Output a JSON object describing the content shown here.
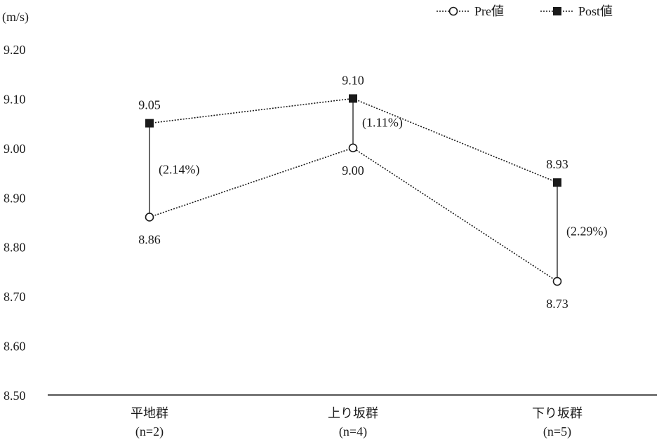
{
  "chart_data": {
    "type": "line",
    "unit_label": "(m/s)",
    "ylim": [
      8.5,
      9.2
    ],
    "y_ticks": [
      "9.20",
      "9.10",
      "9.00",
      "8.90",
      "8.80",
      "8.70",
      "8.60",
      "8.50"
    ],
    "grid": false,
    "legend_position": "top-right",
    "categories": [
      {
        "name": "平地群",
        "n": "(n=2)"
      },
      {
        "name": "上り坂群",
        "n": "(n=4)"
      },
      {
        "name": "下り坂群",
        "n": "(n=5)"
      }
    ],
    "series": [
      {
        "name": "Pre値",
        "marker": "open-circle",
        "values": [
          8.86,
          9.0,
          8.73
        ],
        "labels": [
          "8.86",
          "9.00",
          "8.73"
        ]
      },
      {
        "name": "Post値",
        "marker": "filled-square",
        "values": [
          9.05,
          9.1,
          8.93
        ],
        "labels": [
          "9.05",
          "9.10",
          "8.93"
        ]
      }
    ],
    "change_labels": [
      "(2.14%)",
      "(1.11%)",
      "(2.29%)"
    ],
    "colors": {
      "line": "#1a1a1a",
      "marker_fill": "#1a1a1a",
      "background": "#ffffff"
    }
  }
}
